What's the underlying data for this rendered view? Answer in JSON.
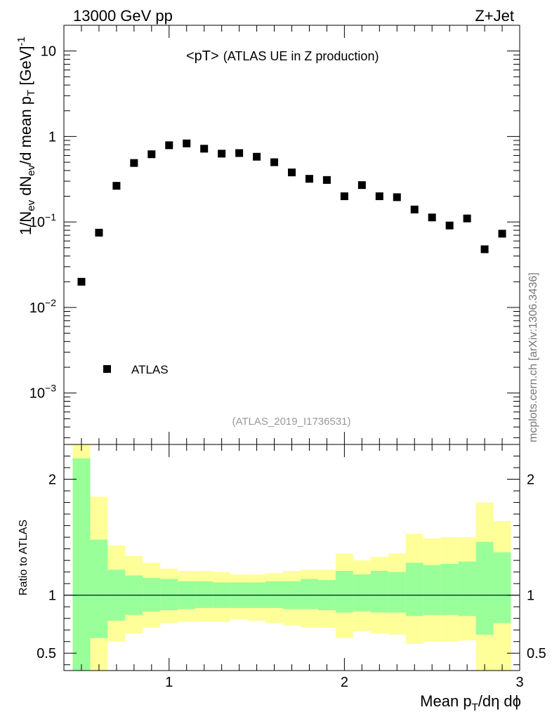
{
  "header": {
    "left": "13000 GeV pp",
    "right": "Z+Jet"
  },
  "side_label": "mcplots.cern.ch [arXiv:1306.3436]",
  "chart_data": [
    {
      "type": "scatter",
      "title": "<pT>",
      "title_suffix": "(ATLAS UE in Z production)",
      "ylabel_parts": {
        "p1": "1/N",
        "s1": "ev",
        "p2": " dN",
        "s2": "ev",
        "p3": "/d mean p",
        "s3": "T",
        "p4": " [GeV]",
        "sup": "-1"
      },
      "yscale": "log",
      "ylim": [
        0.00025,
        20
      ],
      "xlim": [
        0.4,
        3.0
      ],
      "grid": false,
      "legend": {
        "label": "ATLAS",
        "position": "bottom-left"
      },
      "analysis_id": "(ATLAS_2019_I1736531)",
      "y_ticks": [
        {
          "value": 0.001,
          "base": "10",
          "exp": "−3"
        },
        {
          "value": 0.01,
          "base": "10",
          "exp": "−2"
        },
        {
          "value": 0.1,
          "base": "10",
          "exp": "−1"
        },
        {
          "value": 1,
          "base": "1",
          "exp": ""
        },
        {
          "value": 10,
          "base": "10",
          "exp": ""
        }
      ],
      "series": [
        {
          "name": "ATLAS",
          "x": [
            0.5,
            0.6,
            0.7,
            0.8,
            0.9,
            1.0,
            1.1,
            1.2,
            1.3,
            1.4,
            1.5,
            1.6,
            1.7,
            1.8,
            1.9,
            2.0,
            2.1,
            2.2,
            2.3,
            2.4,
            2.5,
            2.6,
            2.7,
            2.8,
            2.9
          ],
          "y": [
            0.02,
            0.075,
            0.265,
            0.49,
            0.62,
            0.79,
            0.83,
            0.72,
            0.63,
            0.64,
            0.58,
            0.5,
            0.38,
            0.32,
            0.31,
            0.2,
            0.27,
            0.2,
            0.195,
            0.14,
            0.113,
            0.091,
            0.11,
            0.048,
            0.073
          ]
        }
      ]
    },
    {
      "type": "area",
      "ylabel": "Ratio to ATLAS",
      "xlabel_parts": {
        "a": "Mean p",
        "sub": "T",
        "b": "/dη dϕ"
      },
      "ylim": [
        0.35,
        2.3
      ],
      "xlim": [
        0.4,
        3.0
      ],
      "y_ticks": [
        0.5,
        1,
        2
      ],
      "y_tick_labels": [
        "0.5",
        "1",
        "2"
      ],
      "x_ticks": [
        1,
        2,
        3
      ],
      "x_tick_labels": [
        "1",
        "2",
        "3"
      ],
      "reference": 1.0,
      "colors": {
        "stat": "#99ff99",
        "total": "#ffff99"
      },
      "bins": [
        0.45,
        0.55,
        0.65,
        0.75,
        0.85,
        0.95,
        1.05,
        1.15,
        1.25,
        1.35,
        1.45,
        1.55,
        1.65,
        1.75,
        1.85,
        1.95,
        2.05,
        2.15,
        2.25,
        2.35,
        2.45,
        2.55,
        2.65,
        2.75,
        2.85,
        2.95
      ],
      "stat_band": {
        "upper": [
          2.18,
          1.48,
          1.22,
          1.17,
          1.15,
          1.14,
          1.12,
          1.12,
          1.11,
          1.11,
          1.11,
          1.12,
          1.12,
          1.14,
          1.13,
          1.21,
          1.18,
          1.21,
          1.2,
          1.28,
          1.26,
          1.27,
          1.29,
          1.46,
          1.37
        ],
        "lower": [
          0.33,
          0.63,
          0.78,
          0.83,
          0.86,
          0.87,
          0.88,
          0.89,
          0.89,
          0.89,
          0.89,
          0.89,
          0.88,
          0.88,
          0.87,
          0.85,
          0.86,
          0.85,
          0.85,
          0.82,
          0.83,
          0.83,
          0.82,
          0.66,
          0.76
        ]
      },
      "total_band": {
        "upper": [
          2.35,
          1.85,
          1.43,
          1.34,
          1.28,
          1.23,
          1.21,
          1.21,
          1.2,
          1.18,
          1.18,
          1.19,
          1.21,
          1.22,
          1.22,
          1.36,
          1.3,
          1.33,
          1.36,
          1.53,
          1.49,
          1.5,
          1.5,
          1.8,
          1.64
        ],
        "lower": [
          0.2,
          0.2,
          0.6,
          0.67,
          0.72,
          0.76,
          0.77,
          0.77,
          0.77,
          0.79,
          0.78,
          0.76,
          0.74,
          0.72,
          0.72,
          0.63,
          0.69,
          0.67,
          0.66,
          0.58,
          0.6,
          0.6,
          0.61,
          0.2,
          0.2
        ]
      }
    }
  ]
}
